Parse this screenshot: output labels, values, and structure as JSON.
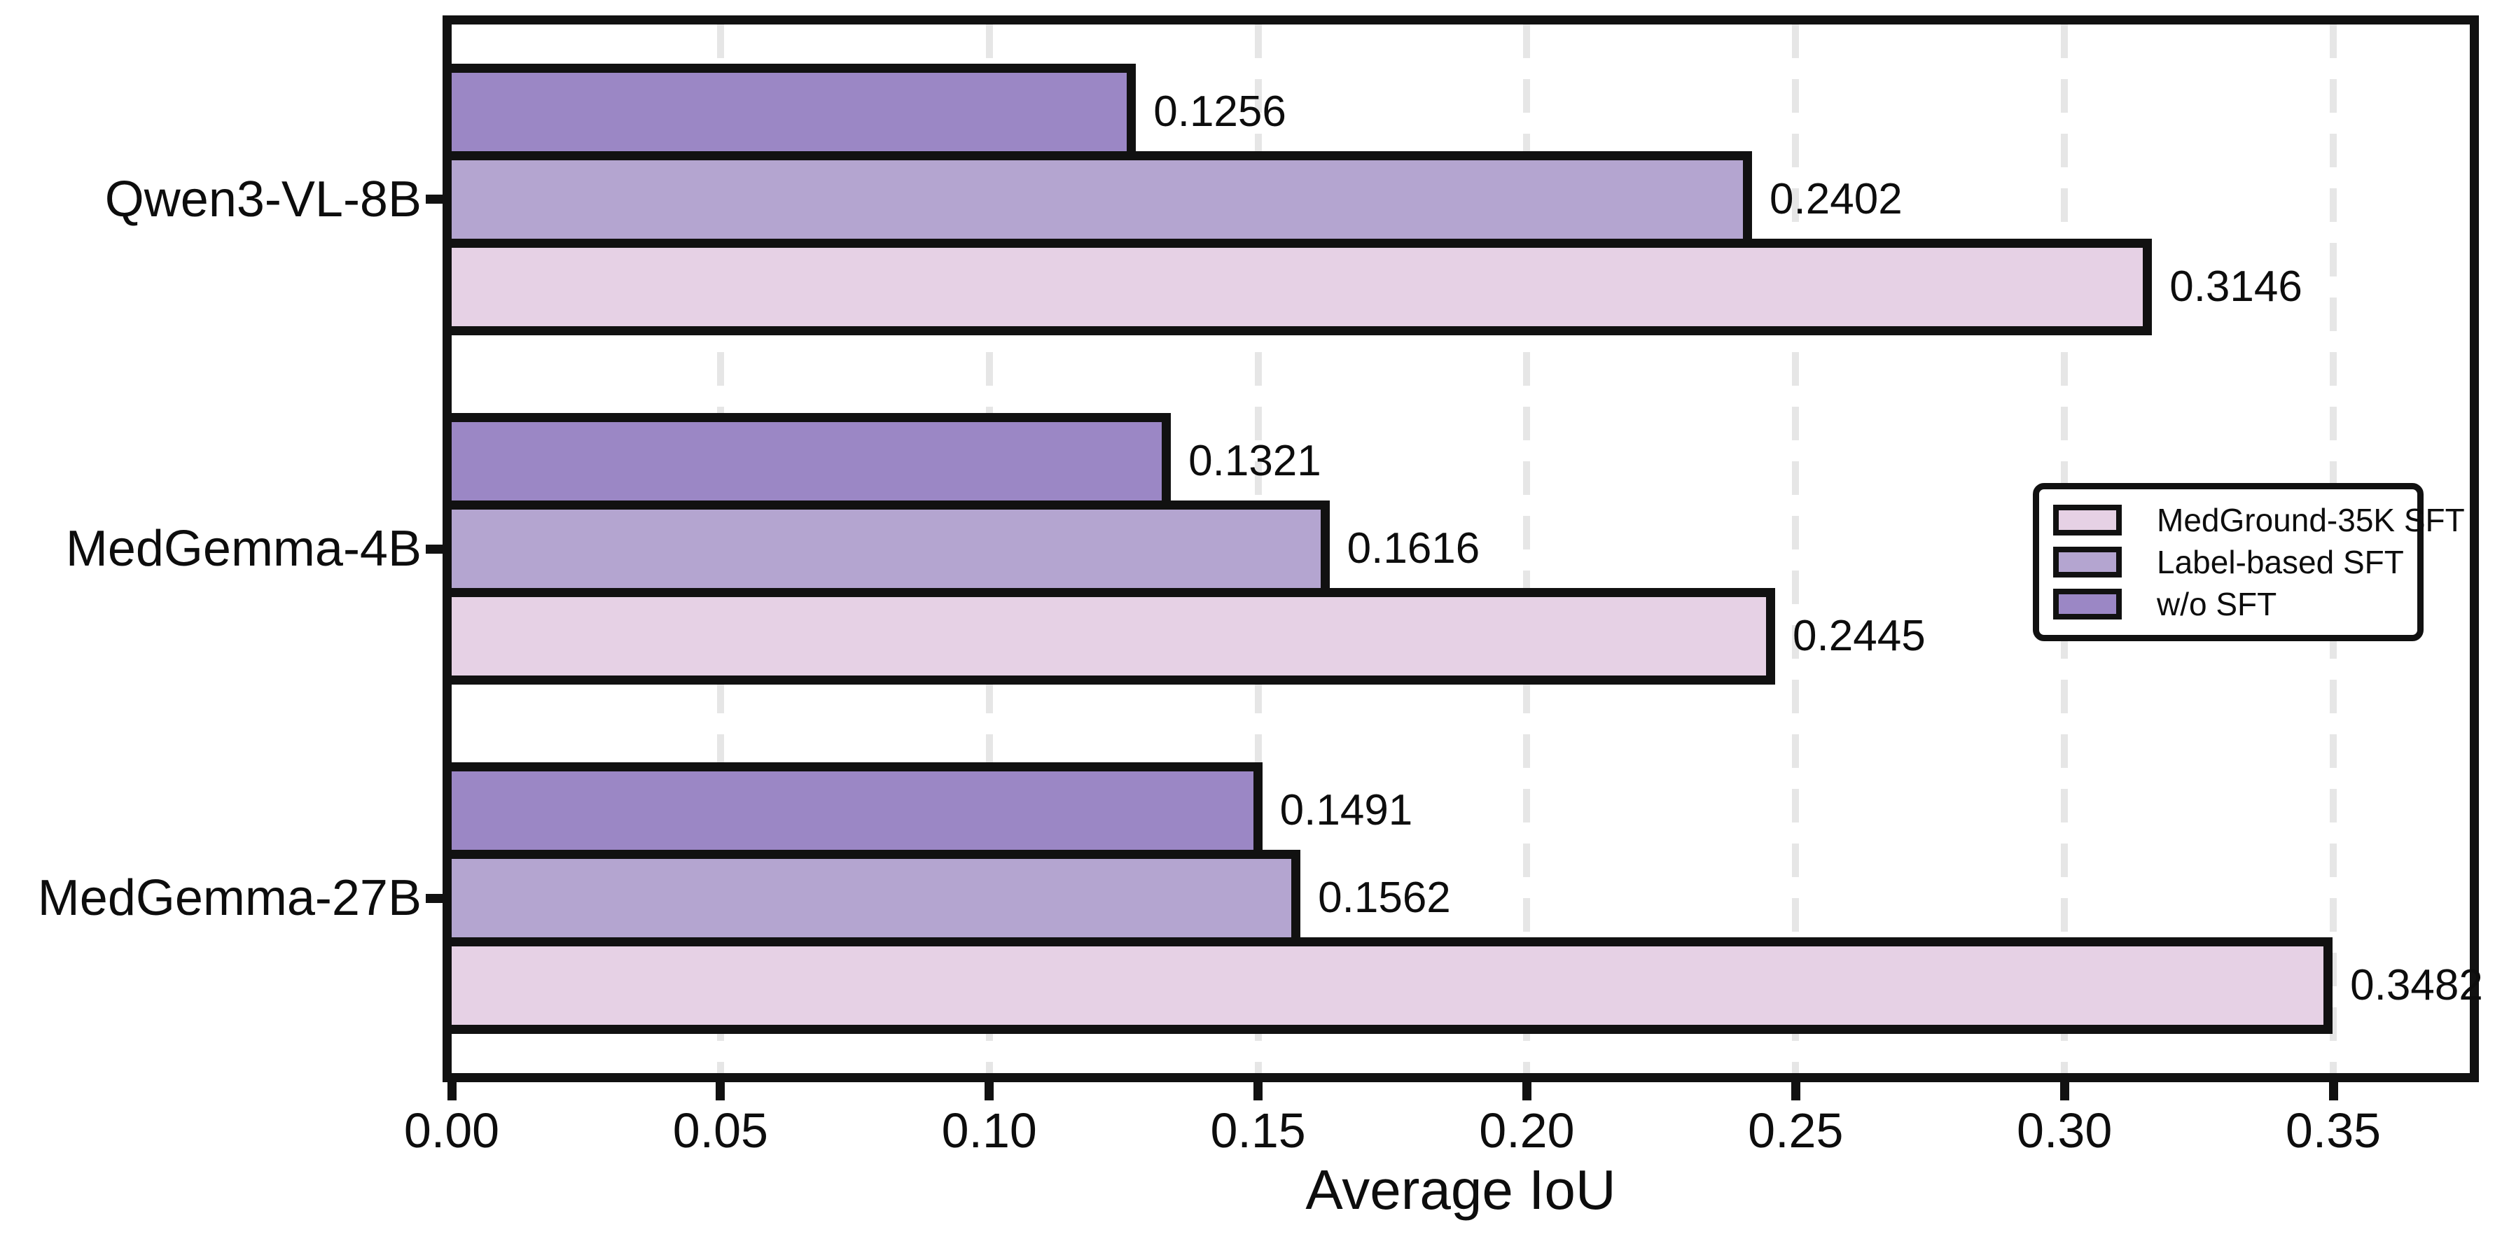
{
  "chart_data": {
    "type": "bar",
    "orientation": "horizontal",
    "title": "",
    "xlabel": "Average IoU",
    "ylabel": "",
    "xlim": [
      0,
      0.3754
    ],
    "xticks": [
      0,
      0.05,
      0.1,
      0.15,
      0.2,
      0.25,
      0.3,
      0.35
    ],
    "xtick_labels": [
      "0.00",
      "0.05",
      "0.10",
      "0.15",
      "0.20",
      "0.25",
      "0.30",
      "0.35"
    ],
    "grid": {
      "show": true,
      "axis": "x",
      "style": "dashed",
      "color": "#e6e6e6"
    },
    "categories": [
      "Qwen3-VL-8B",
      "MedGemma-4B",
      "MedGemma-27B"
    ],
    "series": [
      {
        "name": "w/o SFT",
        "color": "#9b87c5",
        "values": [
          0.1256,
          0.1321,
          0.1491
        ],
        "labels": [
          "0.1256",
          "0.1321",
          "0.1491"
        ]
      },
      {
        "name": "Label-based SFT",
        "color": "#b4a5d0",
        "values": [
          0.2402,
          0.1616,
          0.1562
        ],
        "labels": [
          "0.2402",
          "0.1616",
          "0.1562"
        ]
      },
      {
        "name": "MedGround-35K SFT",
        "color": "#e6d1e5",
        "values": [
          0.3146,
          0.2445,
          0.3482
        ],
        "labels": [
          "0.3146",
          "0.2445",
          "0.3482"
        ]
      }
    ],
    "legend": {
      "position": "center right",
      "entries": [
        "MedGround-35K SFT",
        "Label-based SFT",
        "w/o SFT"
      ]
    },
    "colors": {
      "bar_edge": "#111111",
      "axis": "#111111",
      "text": "#0d0d0d",
      "background": "#ffffff"
    }
  }
}
